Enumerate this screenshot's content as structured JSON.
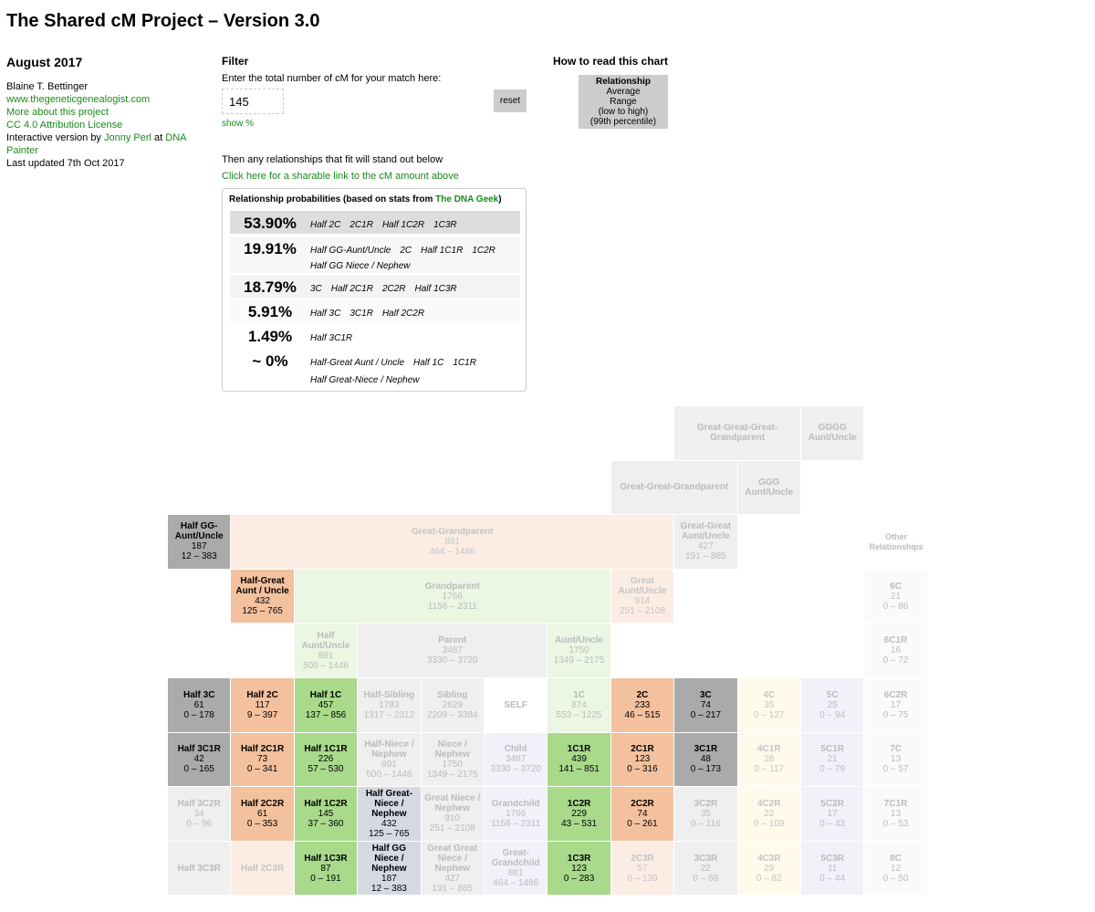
{
  "header": {
    "title": "The Shared cM Project – Version 3.0"
  },
  "sidebar": {
    "date": "August 2017",
    "author": "Blaine T. Bettinger",
    "site": "www.thegeneticgenealogist.com",
    "more": "More about this project",
    "license": "CC 4.0 Attribution License",
    "credit": [
      "Interactive version by ",
      "Jonny Perl",
      " at ",
      "DNA Painter"
    ],
    "updated": "Last updated 7th Oct 2017"
  },
  "filter": {
    "heading": "Filter",
    "prompt": "Enter the total number of cM for your match here:",
    "input_value": "145",
    "reset": "reset",
    "show_percent": "show %",
    "then": "Then any relationships that fit will stand out below",
    "share": "Click here for a sharable link to the cM amount above"
  },
  "how_to": {
    "heading": "How to read this chart",
    "lines": [
      "Relationship",
      "Average",
      "Range",
      "(low to high)",
      "(99th percentile)"
    ]
  },
  "probabilities": {
    "title": [
      "Relationship probabilities (based on stats from ",
      "The DNA Geek",
      ")"
    ],
    "rows": [
      {
        "percent": "53.90%",
        "relationships": [
          "Half 2C",
          "2C1R",
          "Half 1C2R",
          "1C3R"
        ]
      },
      {
        "percent": "19.91%",
        "relationships": [
          "Half GG-Aunt/Uncle",
          "2C",
          "Half 1C1R",
          "1C2R",
          "Half GG Niece / Nephew"
        ]
      },
      {
        "percent": "18.79%",
        "relationships": [
          "3C",
          "Half 2C1R",
          "2C2R",
          "Half 1C3R"
        ]
      },
      {
        "percent": "5.91%",
        "relationships": [
          "Half 3C",
          "3C1R",
          "Half 2C2R"
        ]
      },
      {
        "percent": "1.49%",
        "relationships": [
          "Half 3C1R"
        ]
      },
      {
        "percent": "~ 0%",
        "relationships": [
          "Half-Great Aunt / Uncle",
          "Half 1C",
          "1C1R",
          "Half Great-Niece / Nephew"
        ]
      }
    ]
  },
  "grid": {
    "other_heading": "Other Relationships",
    "cells": [
      {
        "label": "Great-Great-Great-Grandparent"
      },
      {
        "label": "GGGG Aunt/Uncle"
      },
      {
        "label": "Great-Great-Grandparent"
      },
      {
        "label": "GGG Aunt/Uncle"
      },
      {
        "label": "Half GG-Aunt/Uncle",
        "average": 187,
        "range": "12 – 383"
      },
      {
        "label": "Great-Grandparent",
        "average": 881,
        "range": "464 – 1486"
      },
      {
        "label": "Great-Great Aunt/Uncle",
        "average": 427,
        "range": "191 – 885"
      },
      {
        "label": "Half-Great Aunt / Uncle",
        "average": 432,
        "range": "125 – 765"
      },
      {
        "label": "Grandparent",
        "average": 1766,
        "range": "1156 – 2311"
      },
      {
        "label": "Great Aunt/Uncle",
        "average": 914,
        "range": "251 – 2108"
      },
      {
        "label": "6C",
        "average": 21,
        "range": "0 – 86"
      },
      {
        "label": "Half Aunt/Uncle",
        "average": 891,
        "range": "500 – 1446"
      },
      {
        "label": "Parent",
        "average": 3487,
        "range": "3330 – 3720"
      },
      {
        "label": "Aunt/Uncle",
        "average": 1750,
        "range": "1349 – 2175"
      },
      {
        "label": "6C1R",
        "average": 16,
        "range": "0 – 72"
      },
      {
        "label": "Half 3C",
        "average": 61,
        "range": "0 – 178"
      },
      {
        "label": "Half 2C",
        "average": 117,
        "range": "9 – 397"
      },
      {
        "label": "Half 1C",
        "average": 457,
        "range": "137 – 856"
      },
      {
        "label": "Half-Sibling",
        "average": 1783,
        "range": "1317 – 2312"
      },
      {
        "label": "Sibling",
        "average": 2629,
        "range": "2209 – 3384"
      },
      {
        "label": "SELF"
      },
      {
        "label": "1C",
        "average": 874,
        "range": "553 – 1225"
      },
      {
        "label": "2C",
        "average": 233,
        "range": "46 – 515"
      },
      {
        "label": "3C",
        "average": 74,
        "range": "0 – 217"
      },
      {
        "label": "4C",
        "average": 35,
        "range": "0 – 127"
      },
      {
        "label": "5C",
        "average": 25,
        "range": "0 – 94"
      },
      {
        "label": "6C2R",
        "average": 17,
        "range": "0 – 75"
      },
      {
        "label": "Half 3C1R",
        "average": 42,
        "range": "0 – 165"
      },
      {
        "label": "Half 2C1R",
        "average": 73,
        "range": "0 – 341"
      },
      {
        "label": "Half 1C1R",
        "average": 226,
        "range": "57 – 530"
      },
      {
        "label": "Half-Niece / Nephew",
        "average": 891,
        "range": "500 – 1446"
      },
      {
        "label": "Niece / Nephew",
        "average": 1750,
        "range": "1349 – 2175"
      },
      {
        "label": "Child",
        "average": 3487,
        "range": "3330 – 3720"
      },
      {
        "label": "1C1R",
        "average": 439,
        "range": "141 – 851"
      },
      {
        "label": "2C1R",
        "average": 123,
        "range": "0 – 316"
      },
      {
        "label": "3C1R",
        "average": 48,
        "range": "0 – 173"
      },
      {
        "label": "4C1R",
        "average": 28,
        "range": "0 – 117"
      },
      {
        "label": "5C1R",
        "average": 21,
        "range": "0 – 79"
      },
      {
        "label": "7C",
        "average": 13,
        "range": "0 – 57"
      },
      {
        "label": "Half 3C2R",
        "average": 34,
        "range": "0 – 96"
      },
      {
        "label": "Half 2C2R",
        "average": 61,
        "range": "0 – 353"
      },
      {
        "label": "Half 1C2R",
        "average": 145,
        "range": "37 – 360"
      },
      {
        "label": "Half Great-Niece / Nephew",
        "average": 432,
        "range": "125 – 765"
      },
      {
        "label": "Great Niece / Nephew",
        "average": 910,
        "range": "251 – 2108"
      },
      {
        "label": "Grandchild",
        "average": 1766,
        "range": "1156 – 2311"
      },
      {
        "label": "1C2R",
        "average": 229,
        "range": "43 – 531"
      },
      {
        "label": "2C2R",
        "average": 74,
        "range": "0 – 261"
      },
      {
        "label": "3C2R",
        "average": 35,
        "range": "0 – 116"
      },
      {
        "label": "4C2R",
        "average": 22,
        "range": "0 – 109"
      },
      {
        "label": "5C2R",
        "average": 17,
        "range": "0 – 43"
      },
      {
        "label": "7C1R",
        "average": 13,
        "range": "0 – 53"
      },
      {
        "label": "Half 3C3R"
      },
      {
        "label": "Half 2C3R"
      },
      {
        "label": "Half 1C3R",
        "average": 87,
        "range": "0 – 191"
      },
      {
        "label": "Half GG Niece / Nephew",
        "average": 187,
        "range": "12 – 383"
      },
      {
        "label": "Great Great Niece / Nephew",
        "average": 427,
        "range": "191 – 885"
      },
      {
        "label": "Great-Grandchild",
        "average": 881,
        "range": "464 – 1486"
      },
      {
        "label": "1C3R",
        "average": 123,
        "range": "0 – 283"
      },
      {
        "label": "2C3R",
        "average": 57,
        "range": "0 – 139"
      },
      {
        "label": "3C3R",
        "average": 22,
        "range": "0 – 69"
      },
      {
        "label": "4C3R",
        "average": 29,
        "range": "0 – 82"
      },
      {
        "label": "5C3R",
        "average": 11,
        "range": "0 – 44"
      },
      {
        "label": "8C",
        "average": 12,
        "range": "0 – 50"
      }
    ]
  }
}
